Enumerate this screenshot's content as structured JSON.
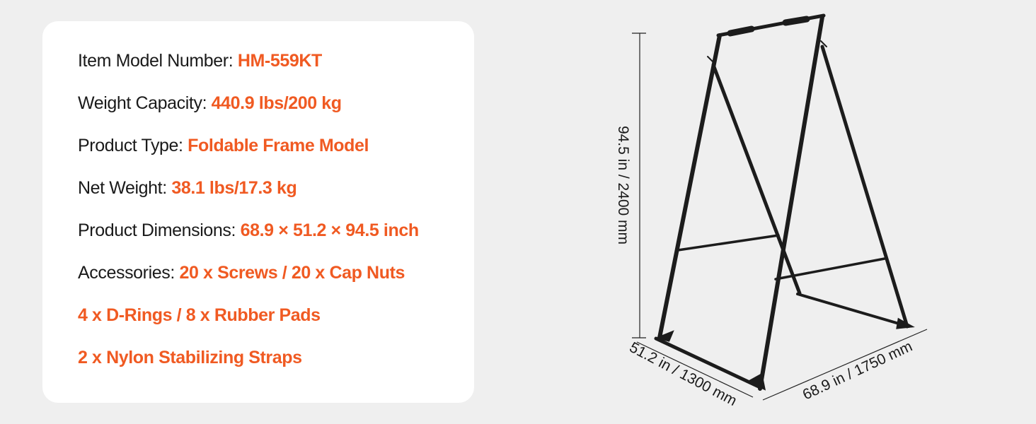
{
  "specs": [
    {
      "label": "Item Model Number: ",
      "value": "HM-559KT"
    },
    {
      "label": "Weight Capacity: ",
      "value": "440.9 lbs/200 kg"
    },
    {
      "label": "Product Type: ",
      "value": "Foldable Frame Model"
    },
    {
      "label": "Net Weight: ",
      "value": "38.1 lbs/17.3 kg"
    },
    {
      "label": "Product Dimensions: ",
      "value": "68.9 × 51.2 × 94.5 inch"
    },
    {
      "label": "Accessories: ",
      "value": "20 x Screws / 20 x Cap Nuts"
    },
    {
      "label": "",
      "value": "4 x D-Rings / 8 x Rubber Pads"
    },
    {
      "label": "",
      "value": "2 x Nylon Stabilizing Straps"
    }
  ],
  "dimensions": {
    "height": "94.5 in / 2400 mm",
    "width": "51.2 in / 1300 mm",
    "depth": "68.9 in / 1750 mm"
  },
  "colors": {
    "accent": "#f05a22",
    "text": "#1a1a1a",
    "card": "#ffffff",
    "background": "#efefef"
  }
}
